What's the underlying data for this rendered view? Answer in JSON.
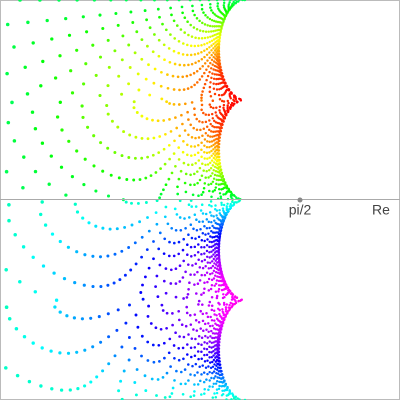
{
  "labels": {
    "tick": "pi/2",
    "axis": "Re"
  }
}
